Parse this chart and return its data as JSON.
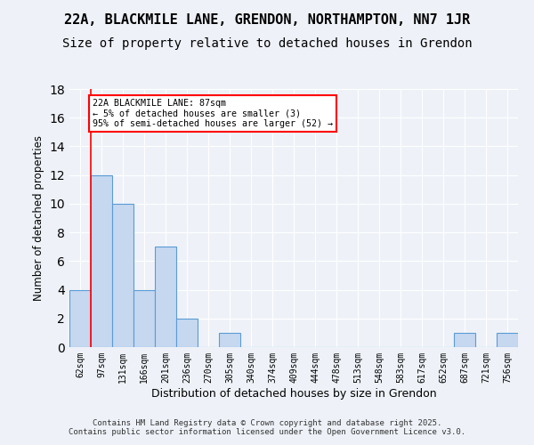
{
  "title": "22A, BLACKMILE LANE, GRENDON, NORTHAMPTON, NN7 1JR",
  "subtitle": "Size of property relative to detached houses in Grendon",
  "xlabel": "Distribution of detached houses by size in Grendon",
  "ylabel": "Number of detached properties",
  "categories": [
    "62sqm",
    "97sqm",
    "131sqm",
    "166sqm",
    "201sqm",
    "236sqm",
    "270sqm",
    "305sqm",
    "340sqm",
    "374sqm",
    "409sqm",
    "444sqm",
    "478sqm",
    "513sqm",
    "548sqm",
    "583sqm",
    "617sqm",
    "652sqm",
    "687sqm",
    "721sqm",
    "756sqm"
  ],
  "values": [
    4,
    12,
    10,
    4,
    7,
    2,
    0,
    1,
    0,
    0,
    0,
    0,
    0,
    0,
    0,
    0,
    0,
    0,
    1,
    0,
    1
  ],
  "bar_color": "#c5d8f0",
  "bar_edge_color": "#5b9bd5",
  "ylim": [
    0,
    18
  ],
  "yticks": [
    0,
    2,
    4,
    6,
    8,
    10,
    12,
    14,
    16,
    18
  ],
  "annotation_text": "22A BLACKMILE LANE: 87sqm\n← 5% of detached houses are smaller (3)\n95% of semi-detached houses are larger (52) →",
  "annotation_box_color": "white",
  "annotation_box_edge_color": "red",
  "red_line_x": 0.5,
  "title_fontsize": 11,
  "subtitle_fontsize": 10,
  "footer_text": "Contains HM Land Registry data © Crown copyright and database right 2025.\nContains public sector information licensed under the Open Government Licence v3.0.",
  "background_color": "#eef2f8"
}
